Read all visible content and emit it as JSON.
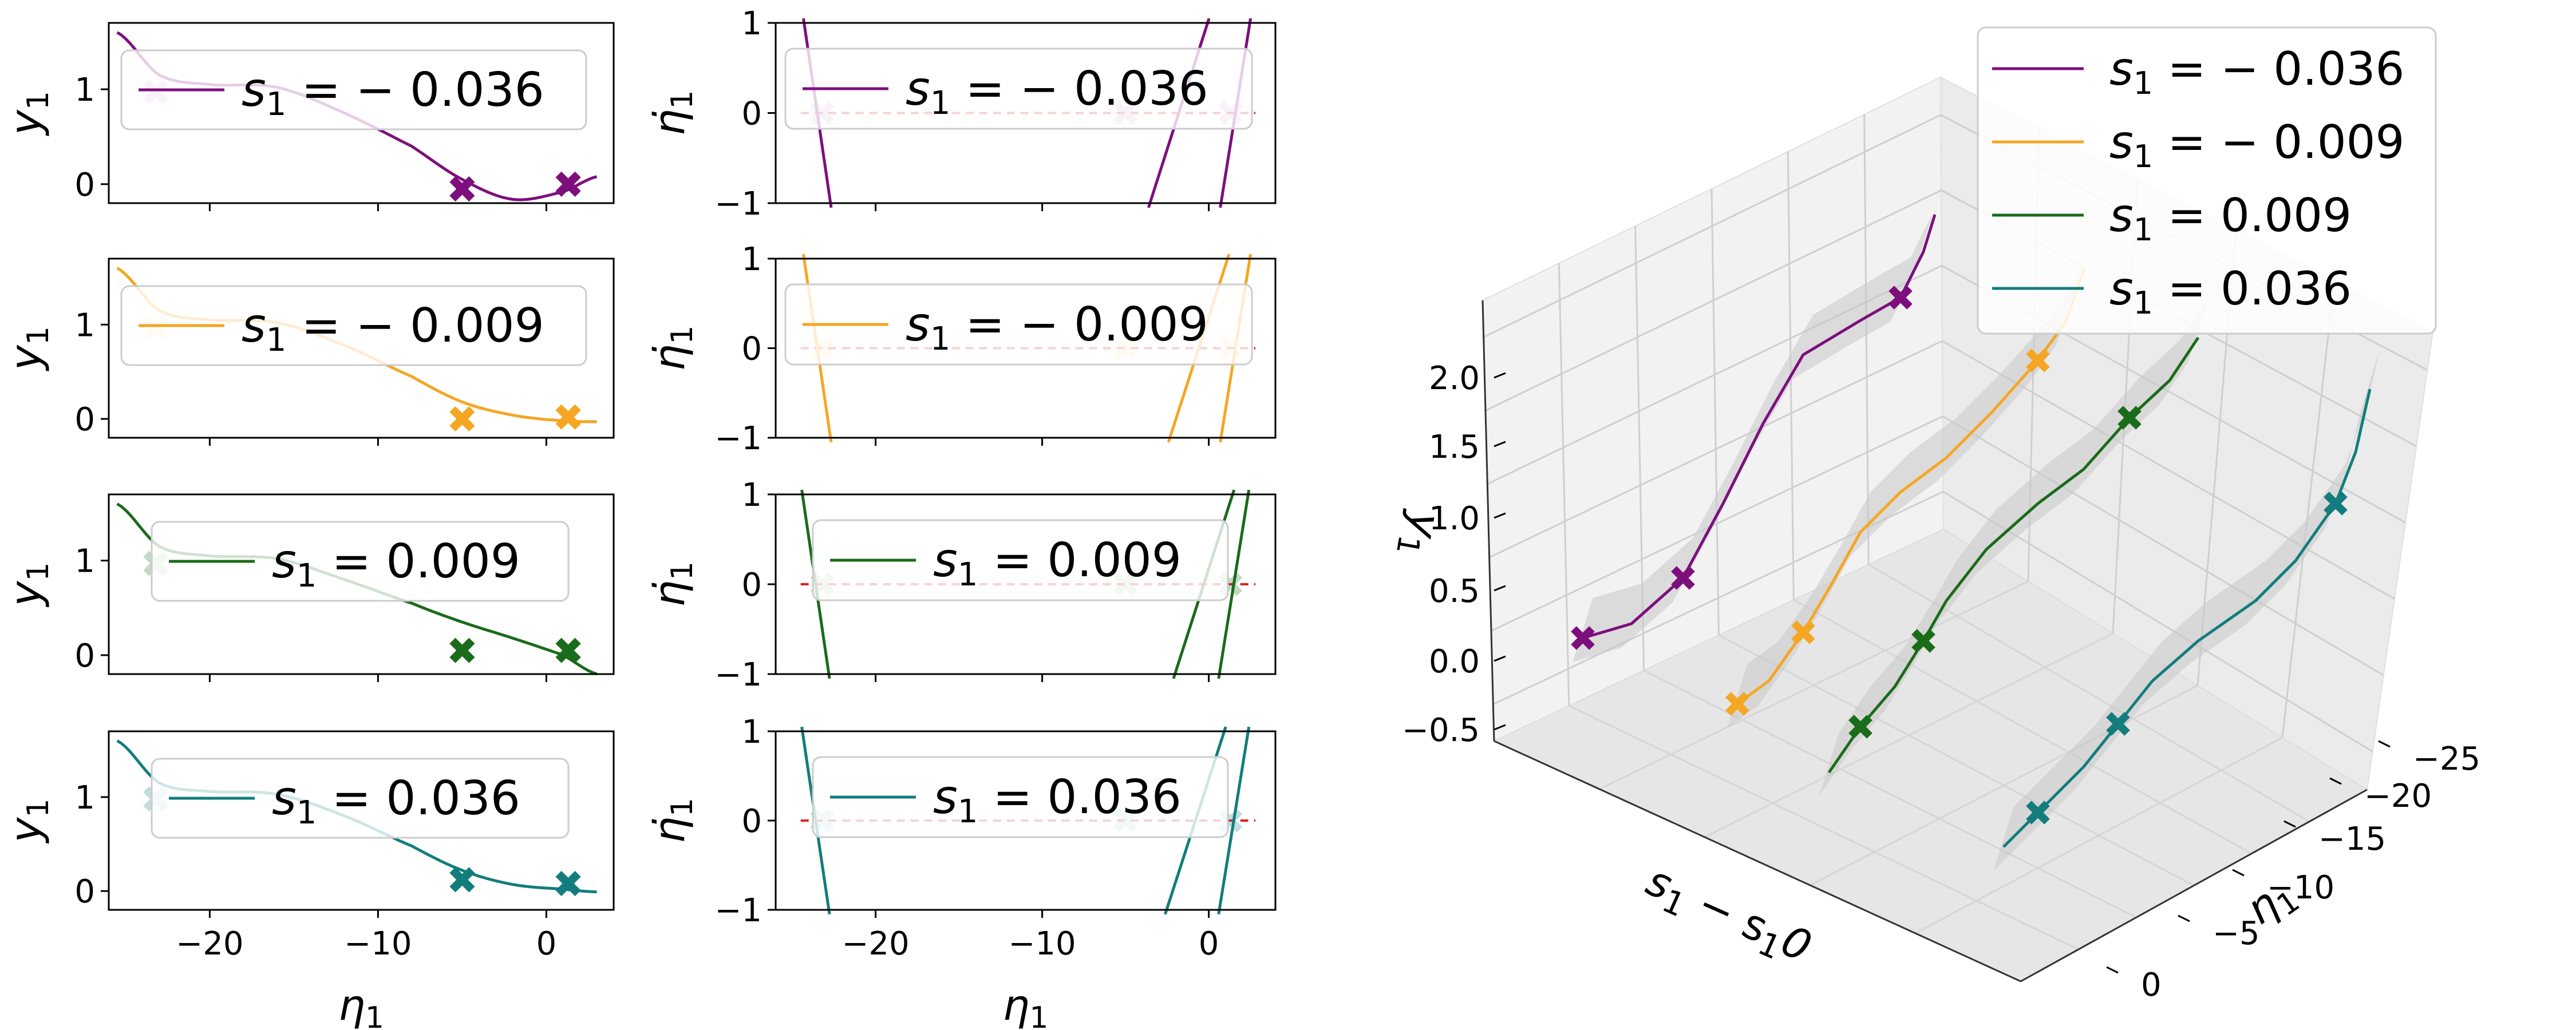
{
  "chart_data": {
    "type": "line",
    "description_labels": {
      "y_label": "y",
      "y_label_sub": "1",
      "deriv_label": "η̇",
      "deriv_label_sub": "1",
      "x_label": "η",
      "x_label_sub": "1",
      "z3d_label": "y",
      "z3d_label_sub": "1",
      "s_axis_label_a": "s",
      "s_axis_label_a_sub": "1",
      "s_axis_label_mid": " − s",
      "s_axis_label_b_sub": "1",
      "s_axis_label_tail": "0"
    },
    "series": [
      {
        "name": "s1 = −0.036",
        "legend_prefix": "s",
        "legend_sub": "1",
        "legend_value": " = − 0.036",
        "color": "#7d0f7d",
        "s1": -0.036,
        "markers_eta": [
          -23.2,
          -5.0,
          1.3
        ],
        "markers_y": [
          0.97,
          -0.05,
          0.0
        ],
        "deriv_roots": [
          -23.5,
          -1.8,
          1.6
        ]
      },
      {
        "name": "s1 = −0.009",
        "legend_prefix": "s",
        "legend_sub": "1",
        "legend_value": " = − 0.009",
        "color": "#f5a623",
        "s1": -0.009,
        "markers_eta": [
          -23.2,
          -5.0,
          1.3
        ],
        "markers_y": [
          0.97,
          0.0,
          0.02
        ],
        "deriv_roots": [
          -23.5,
          -0.6,
          1.6
        ]
      },
      {
        "name": "s1 = 0.009",
        "legend_prefix": "s",
        "legend_sub": "1",
        "legend_value": " = 0.009",
        "color": "#1a6b1a",
        "s1": 0.009,
        "markers_eta": [
          -23.2,
          -5.0,
          1.3
        ],
        "markers_y": [
          0.97,
          0.05,
          0.05
        ],
        "deriv_roots": [
          -23.6,
          -0.3,
          1.5
        ]
      },
      {
        "name": "s1 = 0.036",
        "legend_prefix": "s",
        "legend_sub": "1",
        "legend_value": " = 0.036",
        "color": "#137d7d",
        "s1": 0.036,
        "markers_eta": [
          -23.2,
          -5.0,
          1.3
        ],
        "markers_y": [
          0.98,
          0.12,
          0.08
        ],
        "deriv_roots": [
          -23.6,
          -0.8,
          1.5
        ]
      }
    ],
    "left_panels": {
      "xlim": [
        -26,
        4
      ],
      "ylim": [
        -0.2,
        1.7
      ],
      "xticks": [
        "−20",
        "−10",
        "0"
      ],
      "yticks": [
        "0",
        "1"
      ]
    },
    "middle_panels": {
      "xlim": [
        -26,
        4
      ],
      "ylim": [
        -1,
        1
      ],
      "xticks": [
        "−20",
        "−10",
        "0"
      ],
      "yticks": [
        "−1",
        "0",
        "1"
      ]
    },
    "panel3d": {
      "z_ticks": [
        "−0.5",
        "0.0",
        "0.5",
        "1.0",
        "1.5",
        "2.0"
      ],
      "eta_ticks": [
        "−25",
        "−20",
        "−15",
        "−10",
        "−5",
        "0"
      ]
    }
  }
}
